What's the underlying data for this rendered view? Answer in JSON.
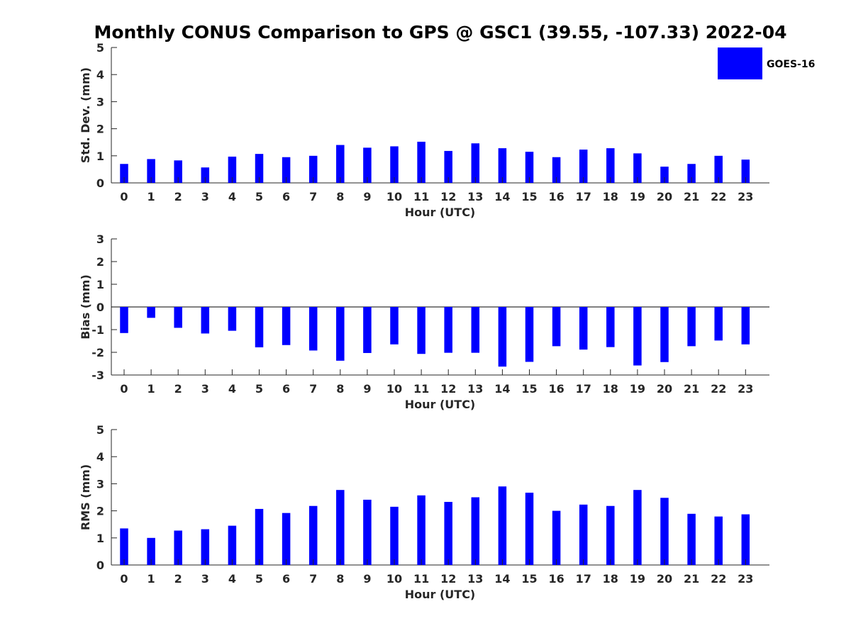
{
  "figure": {
    "title": "Monthly CONUS Comparison to GPS @ GSC1 (39.55, -107.33) 2022-04"
  },
  "legend": {
    "label": "GOES-16",
    "color": "#0000ff",
    "placement": "top-right"
  },
  "chart_data": [
    {
      "type": "bar",
      "title": "",
      "xlabel": "Hour (UTC)",
      "ylabel": "Std. Dev. (mm)",
      "categories": [
        "0",
        "1",
        "2",
        "3",
        "4",
        "5",
        "6",
        "7",
        "8",
        "9",
        "10",
        "11",
        "12",
        "13",
        "14",
        "15",
        "16",
        "17",
        "18",
        "19",
        "20",
        "21",
        "22",
        "23"
      ],
      "series": [
        {
          "name": "GOES-16",
          "color": "#0000ff",
          "values": [
            0.7,
            0.88,
            0.83,
            0.57,
            0.97,
            1.07,
            0.95,
            1.0,
            1.4,
            1.3,
            1.35,
            1.52,
            1.18,
            1.46,
            1.28,
            1.15,
            0.95,
            1.23,
            1.28,
            1.09,
            0.6,
            0.7,
            1.0,
            0.86
          ]
        }
      ],
      "ylim": [
        0,
        5
      ],
      "yticks": [
        0,
        1,
        2,
        3,
        4,
        5
      ],
      "zero_line": false,
      "grid": false
    },
    {
      "type": "bar",
      "title": "",
      "xlabel": "Hour (UTC)",
      "ylabel": "Bias (mm)",
      "categories": [
        "0",
        "1",
        "2",
        "3",
        "4",
        "5",
        "6",
        "7",
        "8",
        "9",
        "10",
        "11",
        "12",
        "13",
        "14",
        "15",
        "16",
        "17",
        "18",
        "19",
        "20",
        "21",
        "22",
        "23"
      ],
      "series": [
        {
          "name": "GOES-16",
          "color": "#0000ff",
          "values": [
            -1.15,
            -0.48,
            -0.92,
            -1.17,
            -1.05,
            -1.78,
            -1.68,
            -1.92,
            -2.37,
            -2.03,
            -1.65,
            -2.07,
            -2.02,
            -2.02,
            -2.63,
            -2.42,
            -1.73,
            -1.88,
            -1.77,
            -2.58,
            -2.43,
            -1.73,
            -1.48,
            -1.65
          ]
        }
      ],
      "ylim": [
        -3,
        3
      ],
      "yticks": [
        -3,
        -2,
        -1,
        0,
        1,
        2,
        3
      ],
      "zero_line": true,
      "grid": false
    },
    {
      "type": "bar",
      "title": "",
      "xlabel": "Hour (UTC)",
      "ylabel": "RMS (mm)",
      "categories": [
        "0",
        "1",
        "2",
        "3",
        "4",
        "5",
        "6",
        "7",
        "8",
        "9",
        "10",
        "11",
        "12",
        "13",
        "14",
        "15",
        "16",
        "17",
        "18",
        "19",
        "20",
        "21",
        "22",
        "23"
      ],
      "series": [
        {
          "name": "GOES-16",
          "color": "#0000ff",
          "values": [
            1.35,
            1.0,
            1.27,
            1.32,
            1.45,
            2.07,
            1.92,
            2.18,
            2.77,
            2.41,
            2.15,
            2.57,
            2.33,
            2.5,
            2.9,
            2.67,
            2.0,
            2.23,
            2.18,
            2.77,
            2.48,
            1.89,
            1.79,
            1.87
          ]
        }
      ],
      "ylim": [
        0,
        5
      ],
      "yticks": [
        0,
        1,
        2,
        3,
        4,
        5
      ],
      "zero_line": false,
      "grid": false
    }
  ]
}
